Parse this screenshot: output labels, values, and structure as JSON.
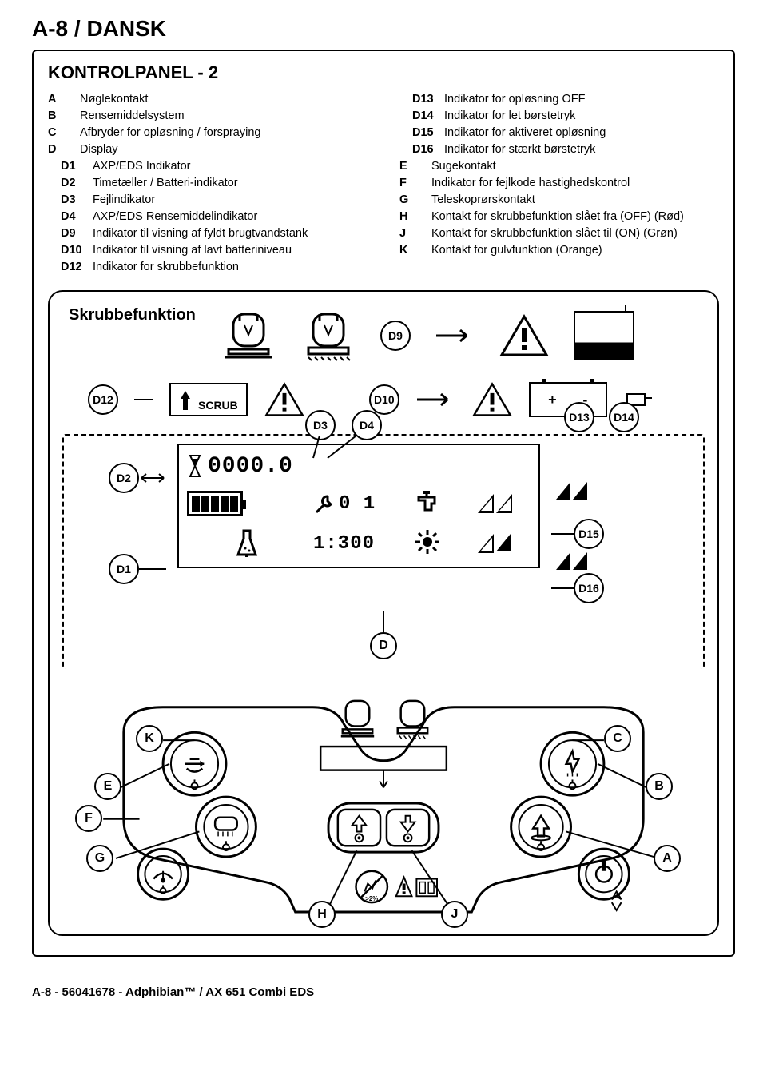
{
  "page_header": "A-8 / DANSK",
  "section_title": "KONTROLPANEL - 2",
  "legend_left": [
    {
      "k": "A",
      "sub": false,
      "t": "Nøglekontakt"
    },
    {
      "k": "B",
      "sub": false,
      "t": "Rensemiddelsystem"
    },
    {
      "k": "C",
      "sub": false,
      "t": "Afbryder for opløsning / forspraying"
    },
    {
      "k": "D",
      "sub": false,
      "t": "Display"
    },
    {
      "k": "D1",
      "sub": true,
      "t": "AXP/EDS Indikator"
    },
    {
      "k": "D2",
      "sub": true,
      "t": "Timetæller / Batteri-indikator"
    },
    {
      "k": "D3",
      "sub": true,
      "t": "Fejlindikator"
    },
    {
      "k": "D4",
      "sub": true,
      "t": "AXP/EDS Rensemiddelindikator"
    },
    {
      "k": "D9",
      "sub": true,
      "t": "Indikator til visning af fyldt brugtvandstank"
    },
    {
      "k": "D10",
      "sub": true,
      "t": "Indikator til visning af lavt batteriniveau"
    },
    {
      "k": "D12",
      "sub": true,
      "t": "Indikator for skrubbefunktion"
    }
  ],
  "legend_right": [
    {
      "k": "D13",
      "sub": true,
      "t": "Indikator for opløsning OFF"
    },
    {
      "k": "D14",
      "sub": true,
      "t": "Indikator for let børstetryk"
    },
    {
      "k": "D15",
      "sub": true,
      "t": "Indikator for aktiveret opløsning"
    },
    {
      "k": "D16",
      "sub": true,
      "t": "Indikator for stærkt børstetryk"
    },
    {
      "k": "E",
      "sub": false,
      "t": "Sugekontakt"
    },
    {
      "k": "F",
      "sub": false,
      "t": "Indikator for fejlkode hastighedskontrol"
    },
    {
      "k": "G",
      "sub": false,
      "t": "Teleskoprørskontakt"
    },
    {
      "k": "H",
      "sub": false,
      "t": "Kontakt for skrubbefunktion slået fra (OFF) (Rød)"
    },
    {
      "k": "J",
      "sub": false,
      "t": "Kontakt for skrubbefunktion slået til (ON) (Grøn)"
    },
    {
      "k": "K",
      "sub": false,
      "t": "Kontakt for gulvfunktion (Orange)"
    }
  ],
  "skrub_title": "Skrubbefunktion",
  "scrub_label": "SCRUB",
  "lcd": {
    "hours": "0000.0",
    "fault": "0 1",
    "ratio": "1:300"
  },
  "circle_labels": {
    "d9": "D9",
    "d12": "D12",
    "d10": "D10",
    "d3": "D3",
    "d4": "D4",
    "d2": "D2",
    "d1": "D1",
    "d13": "D13",
    "d14": "D14",
    "d15": "D15",
    "d16": "D16",
    "d": "D",
    "k": "K",
    "c": "C",
    "e": "E",
    "b": "B",
    "f": "F",
    "g": "G",
    "a": "A",
    "h": "H",
    "j": "J"
  },
  "batt_signs": {
    "plus": "+",
    "minus": "-"
  },
  "footer": "A-8 - 56041678 - Adphibian™ / AX 651 Combi EDS",
  "colors": {
    "stroke": "#000000",
    "bg": "#ffffff"
  }
}
